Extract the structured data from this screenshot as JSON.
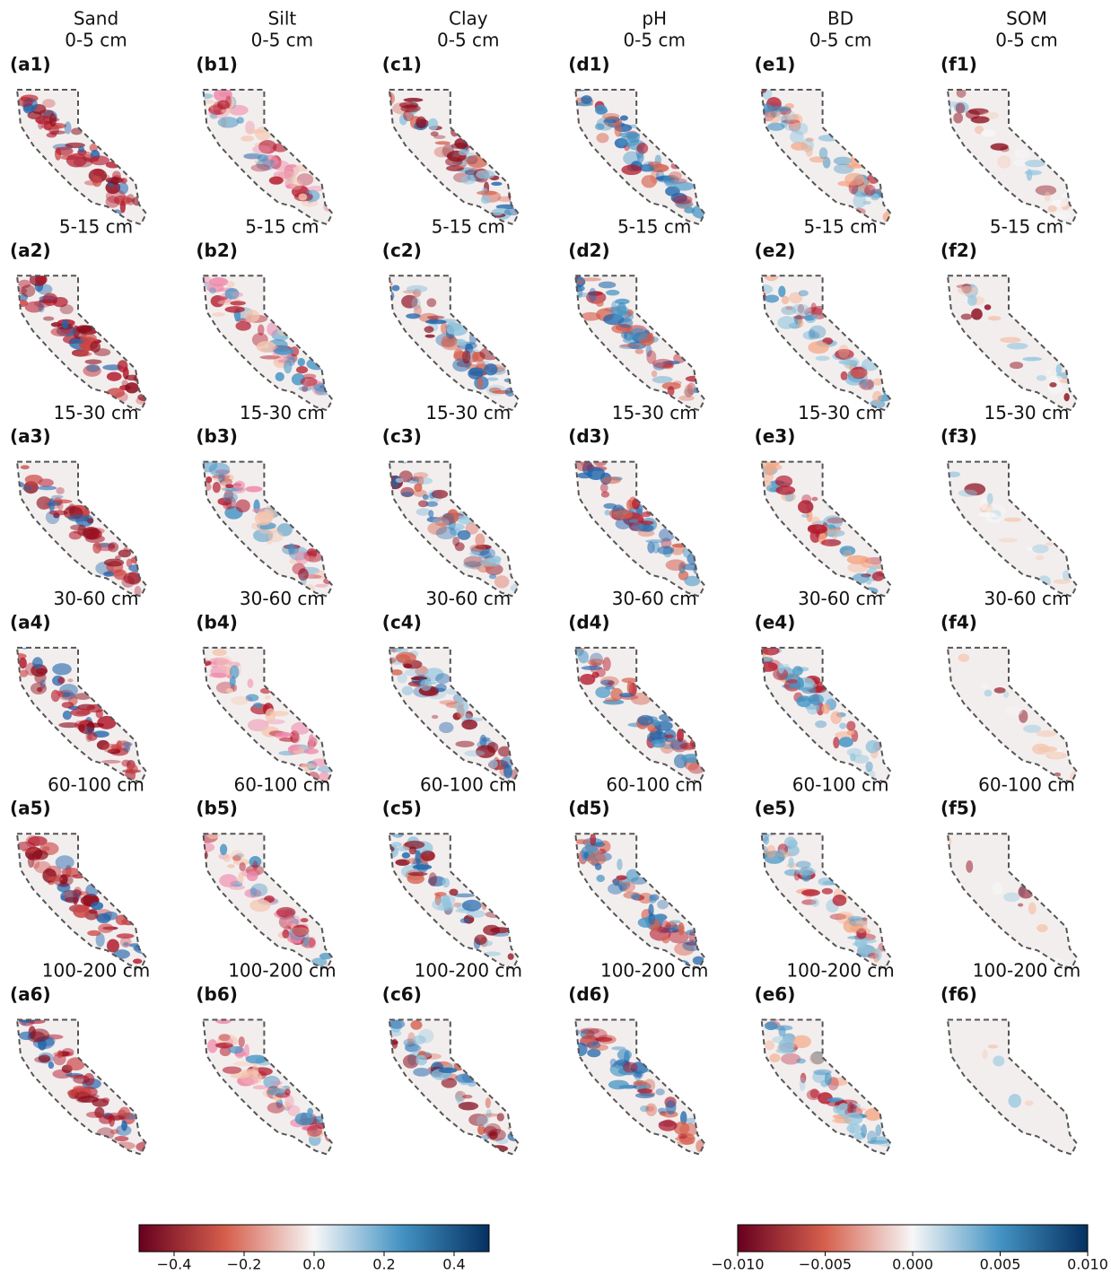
{
  "columns": [
    "Sand",
    "Silt",
    "Clay",
    "pH",
    "BD",
    "SOM"
  ],
  "depths": [
    "0-5 cm",
    "5-15 cm",
    "15-30 cm",
    "30-60 cm",
    "60-100 cm",
    "100-200 cm"
  ],
  "panels": [
    [
      "(a1)",
      "(b1)",
      "(c1)",
      "(d1)",
      "(e1)",
      "(f1)"
    ],
    [
      "(a2)",
      "(b2)",
      "(c2)",
      "(d2)",
      "(e2)",
      "(f2)"
    ],
    [
      "(a3)",
      "(b3)",
      "(c3)",
      "(d3)",
      "(e3)",
      "(f3)"
    ],
    [
      "(a4)",
      "(b4)",
      "(c4)",
      "(d4)",
      "(e4)",
      "(f4)"
    ],
    [
      "(a5)",
      "(b5)",
      "(c5)",
      "(d5)",
      "(e5)",
      "(f5)"
    ],
    [
      "(a6)",
      "(b6)",
      "(c6)",
      "(d6)",
      "(e6)",
      "(f6)"
    ]
  ],
  "colorbars": [
    {
      "lim": [
        -0.5,
        0.5
      ],
      "colors": [
        "#67001f",
        "#d6604d",
        "#f7f7f7",
        "#4393c3",
        "#053061"
      ],
      "ticks": [
        {
          "value": -0.4,
          "label": "−0.4"
        },
        {
          "value": -0.2,
          "label": "−0.2"
        },
        {
          "value": 0,
          "label": "0.0"
        },
        0.2,
        0.4
      ]
    },
    {
      "lim": [
        -0.01,
        0.01
      ],
      "colors": [
        "#67001f",
        "#d6604d",
        "#f7f7f7",
        "#4393c3",
        "#053061"
      ],
      "ticks": [
        {
          "value": -0.01,
          "label": "−0.010"
        },
        {
          "value": -0.005,
          "label": "−0.005"
        },
        {
          "value": 0,
          "label": "0.000"
        },
        0.005,
        {
          "value": 0.01,
          "label": "0.010"
        }
      ]
    }
  ]
}
